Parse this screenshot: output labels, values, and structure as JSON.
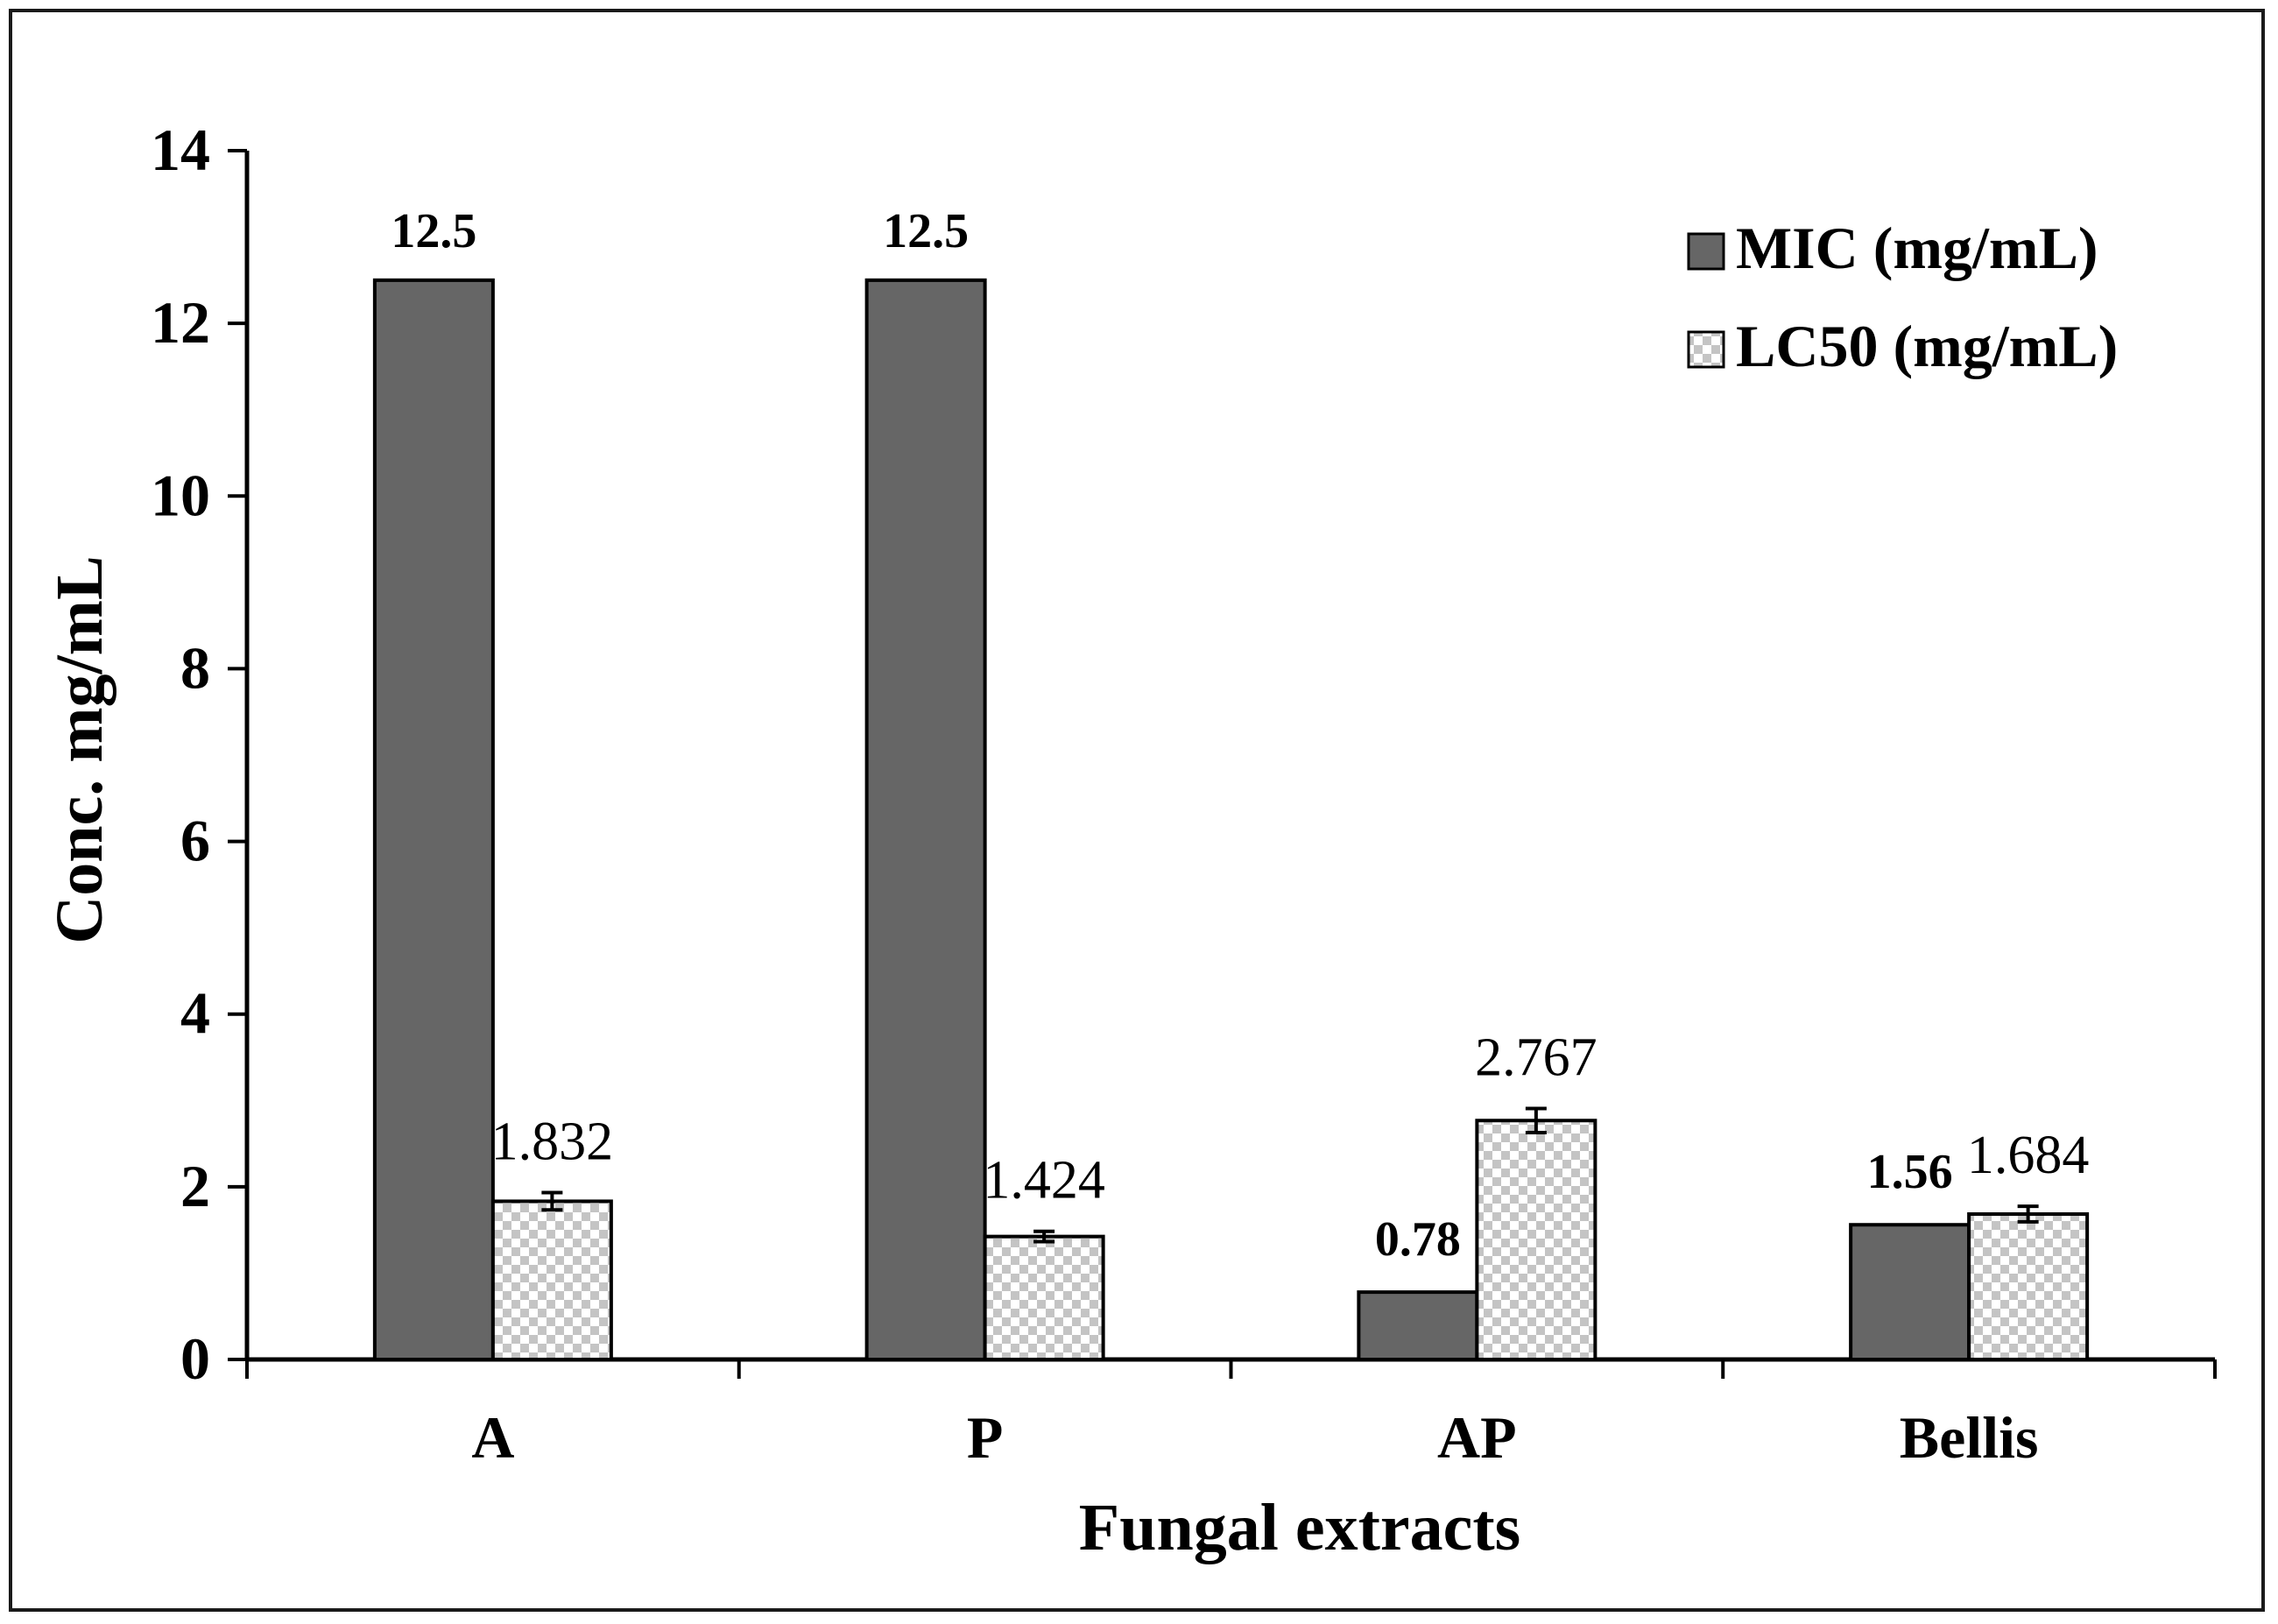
{
  "chart_data": {
    "type": "bar",
    "xlabel": "Fungal extracts",
    "ylabel": "Conc. mg/mL",
    "ylim": [
      0,
      14
    ],
    "yticks": [
      0,
      2,
      4,
      6,
      8,
      10,
      12,
      14
    ],
    "categories": [
      "A",
      "P",
      "AP",
      "Bellis"
    ],
    "series": [
      {
        "name": "MIC (mg/mL)",
        "values": [
          12.5,
          12.5,
          0.78,
          1.56
        ],
        "labels": [
          "12.5",
          "12.5",
          "0.78",
          "1.56"
        ],
        "color": "#666666",
        "pattern": "solid"
      },
      {
        "name": "LC50 (mg/mL)",
        "values": [
          1.832,
          1.424,
          2.767,
          1.684
        ],
        "labels": [
          "1.832",
          "1.424",
          "2.767",
          "1.684"
        ],
        "errors": [
          0.1,
          0.06,
          0.14,
          0.09
        ],
        "color": "#c8c8c8",
        "pattern": "checker"
      }
    ],
    "legend_position": "top-right",
    "grid": false
  }
}
